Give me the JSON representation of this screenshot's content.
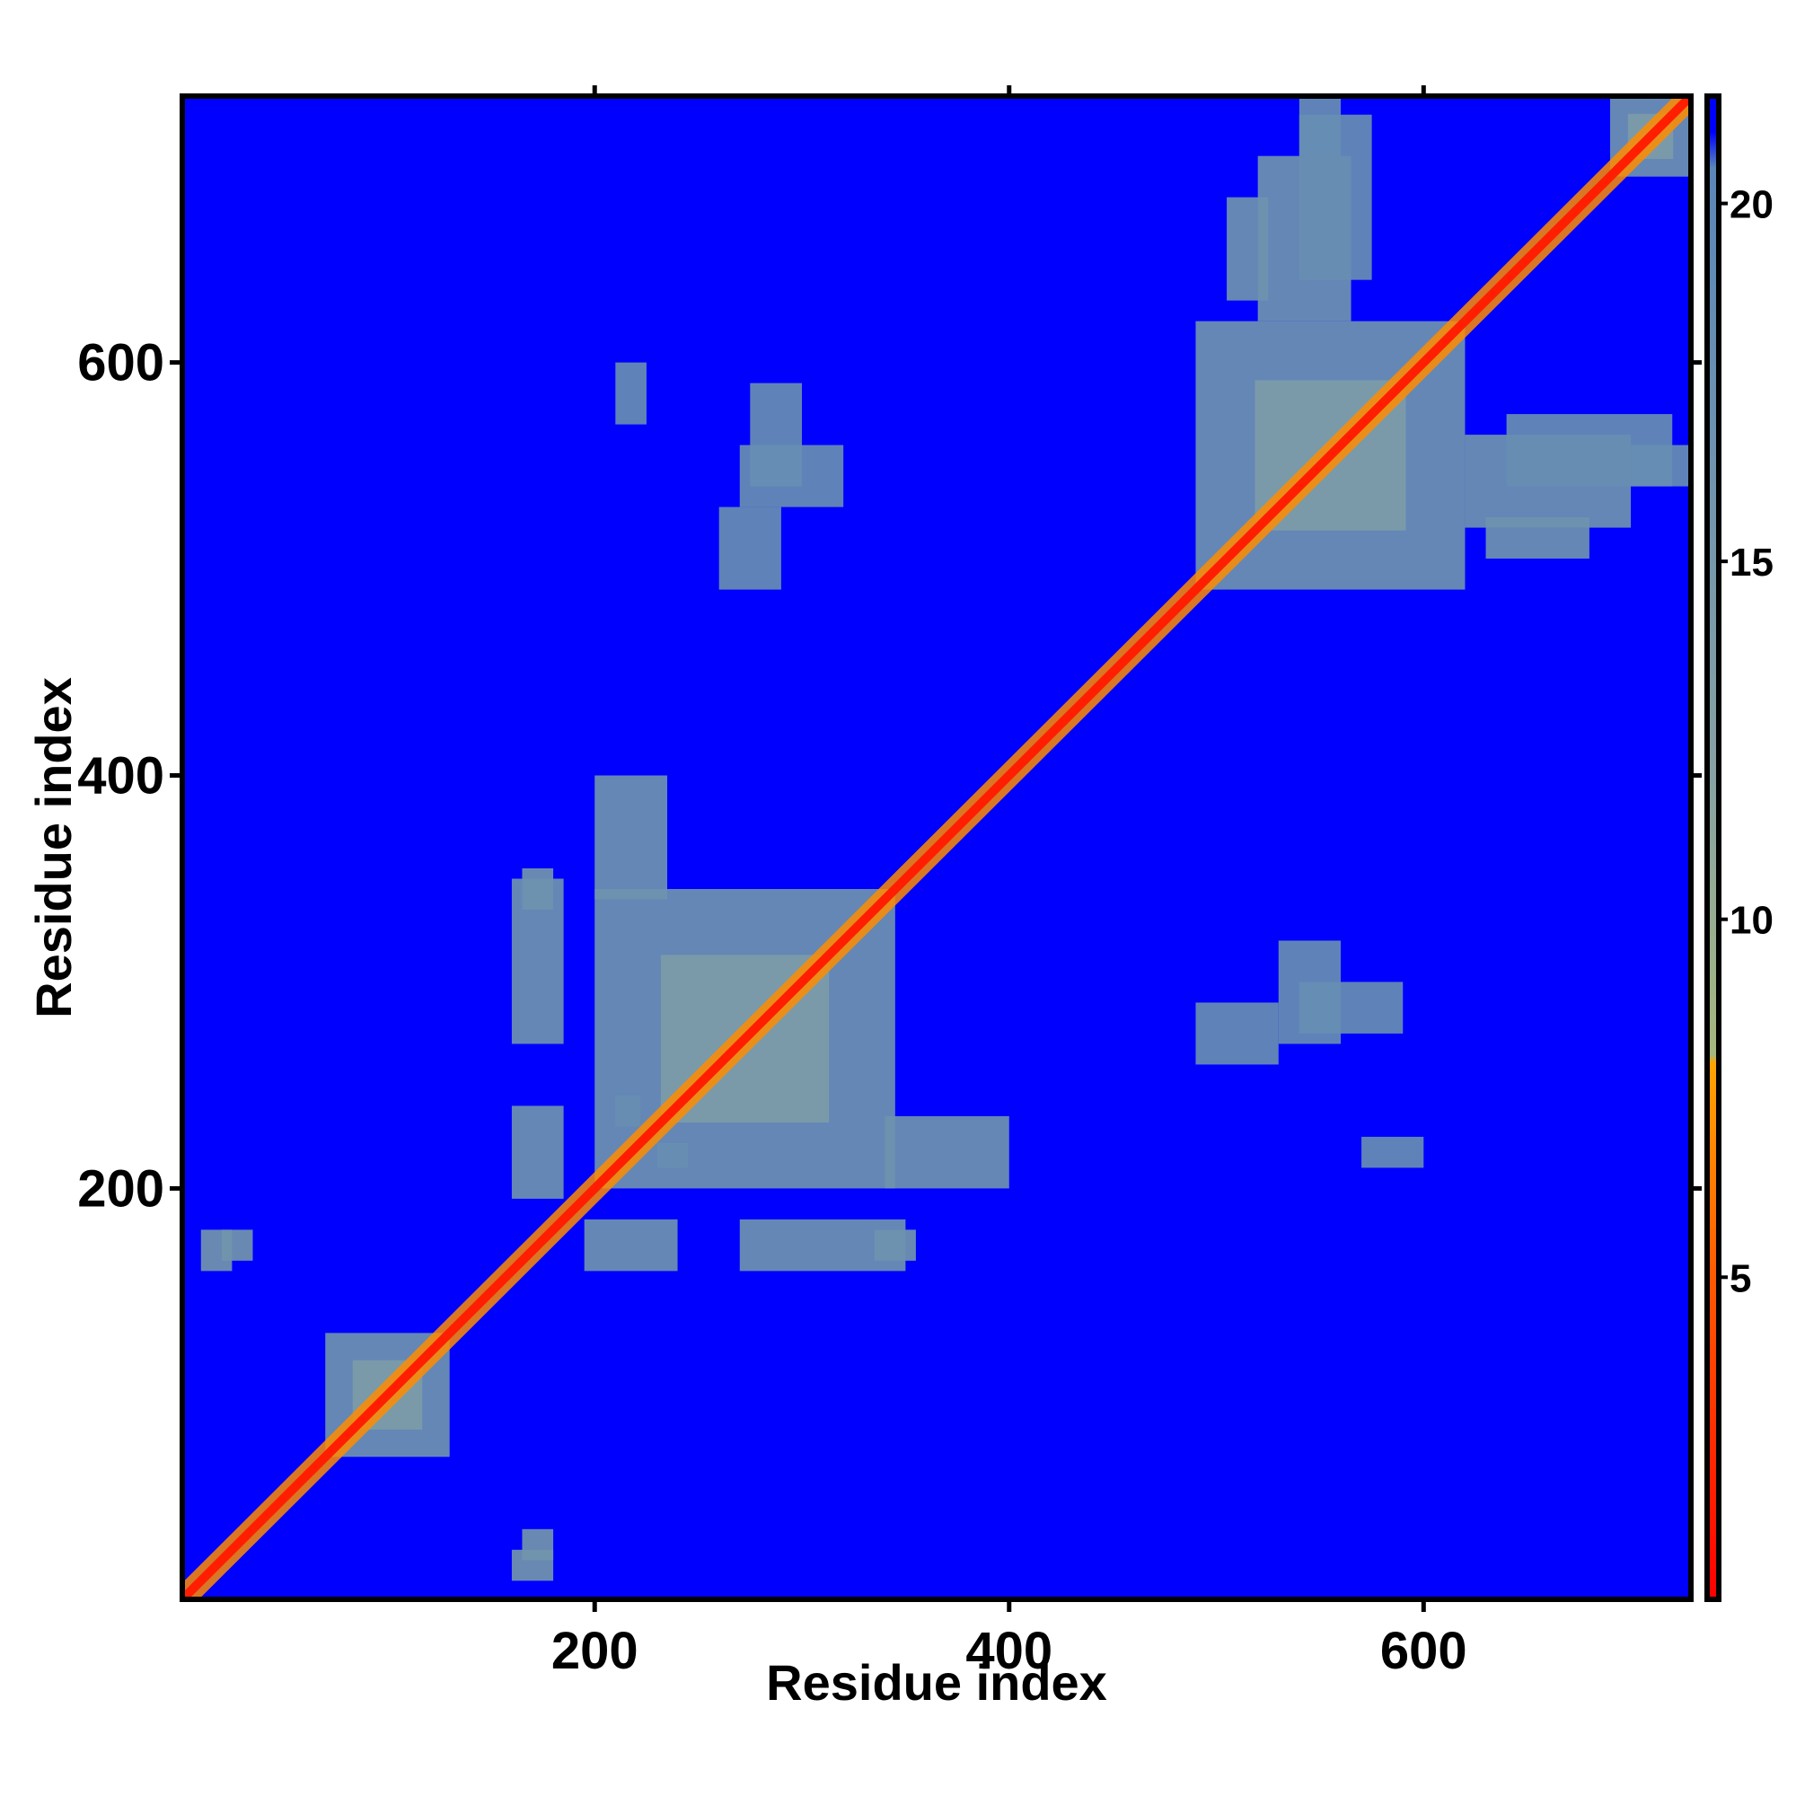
{
  "chart_data": {
    "type": "heatmap",
    "title": "",
    "xlabel": "Residue index",
    "ylabel": "Residue index",
    "xlim": [
      1,
      729
    ],
    "ylim": [
      1,
      729
    ],
    "xticks": [
      200,
      400,
      600
    ],
    "yticks": [
      200,
      400,
      600
    ],
    "grid": false,
    "matrix_description": "symmetric residue-residue distance map; values in angstrom-like units, low (red) near diagonal, saturated (blue) far away",
    "diagonal": {
      "from": 1,
      "to": 729,
      "value": 2
    },
    "domains": [
      {
        "start": 70,
        "end": 130,
        "value": 17
      },
      {
        "start": 200,
        "end": 345,
        "value": 17
      },
      {
        "start": 490,
        "end": 620,
        "value": 17
      },
      {
        "start": 690,
        "end": 729,
        "value": 17
      }
    ],
    "off_diagonal_patches": [
      {
        "rows": [
          165,
          180
        ],
        "cols": [
          20,
          35
        ],
        "value": 16
      },
      {
        "rows": [
          165,
          180
        ],
        "cols": [
          335,
          355
        ],
        "value": 16
      },
      {
        "rows": [
          10,
          25
        ],
        "cols": [
          160,
          180
        ],
        "value": 16
      },
      {
        "rows": [
          195,
          240
        ],
        "cols": [
          160,
          185
        ],
        "value": 17
      },
      {
        "rows": [
          270,
          350
        ],
        "cols": [
          160,
          185
        ],
        "value": 17
      },
      {
        "rows": [
          200,
          235
        ],
        "cols": [
          340,
          400
        ],
        "value": 17
      },
      {
        "rows": [
          210,
          222
        ],
        "cols": [
          230,
          245
        ],
        "value": 18
      },
      {
        "rows": [
          505,
          525
        ],
        "cols": [
          630,
          680
        ],
        "value": 17
      },
      {
        "rows": [
          520,
          565
        ],
        "cols": [
          620,
          700
        ],
        "value": 17
      },
      {
        "rows": [
          540,
          560
        ],
        "cols": [
          700,
          730
        ],
        "value": 18
      },
      {
        "rows": [
          640,
          720
        ],
        "cols": [
          540,
          575
        ],
        "value": 18
      },
      {
        "rows": [
          260,
          290
        ],
        "cols": [
          490,
          530
        ],
        "value": 18
      },
      {
        "rows": [
          275,
          300
        ],
        "cols": [
          540,
          590
        ],
        "value": 18
      },
      {
        "rows": [
          210,
          225
        ],
        "cols": [
          570,
          600
        ],
        "value": 18
      },
      {
        "rows": [
          530,
          560
        ],
        "cols": [
          270,
          320
        ],
        "value": 18
      }
    ],
    "colorbar": {
      "ticks": [
        5,
        10,
        15,
        20
      ],
      "range": [
        0.5,
        21.5
      ],
      "stops": [
        {
          "value": 0.5,
          "color": "#ff0000"
        },
        {
          "value": 5.0,
          "color": "#ff5a00"
        },
        {
          "value": 8.0,
          "color": "#ffa500"
        },
        {
          "value": 8.1,
          "color": "#a6b87e"
        },
        {
          "value": 12.0,
          "color": "#87a2a4"
        },
        {
          "value": 20.5,
          "color": "#5a86b8"
        },
        {
          "value": 21.0,
          "color": "#0000ff"
        },
        {
          "value": 21.5,
          "color": "#0000ff"
        }
      ]
    },
    "colors": {
      "background": "#0000ff",
      "domain": "#5b8ab5",
      "core": "#8aa894",
      "diagonal": "#ff2a00",
      "near_diagonal": "#ff8c00"
    }
  }
}
